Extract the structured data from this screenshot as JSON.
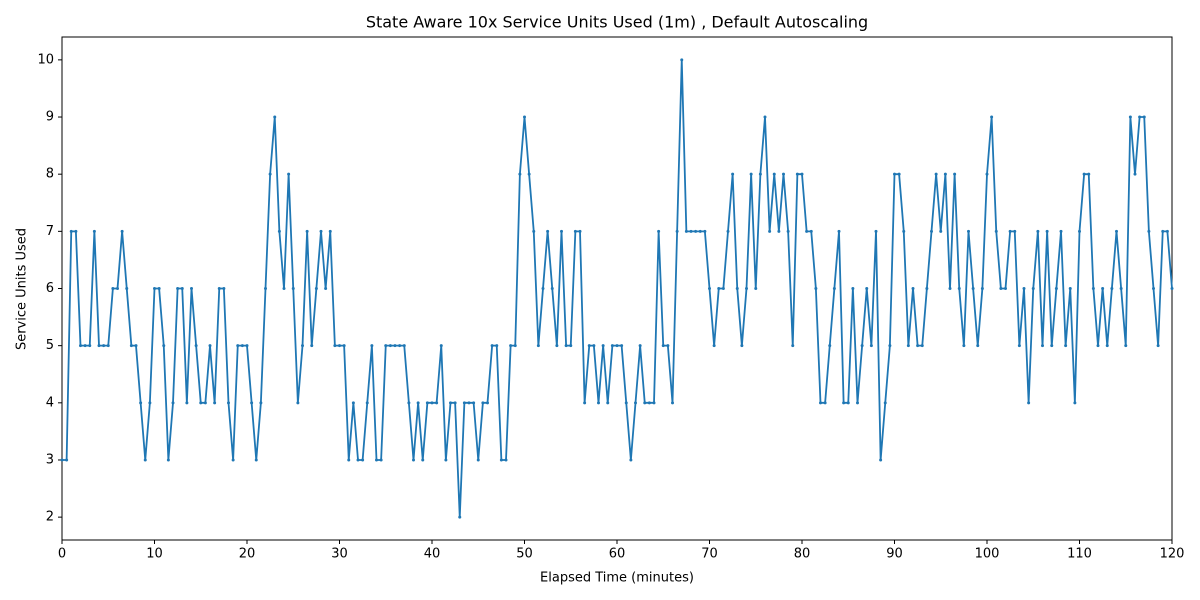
{
  "chart_data": {
    "type": "line",
    "title": "State Aware 10x Service Units Used (1m) , Default Autoscaling",
    "x_label": "Elapsed Time (minutes)",
    "y_label": "Service Units Used",
    "x": [
      0,
      0.5,
      1,
      1.5,
      2,
      2.5,
      3,
      3.5,
      4,
      4.5,
      5,
      5.5,
      6,
      6.5,
      7,
      7.5,
      8,
      8.5,
      9,
      9.5,
      10,
      10.5,
      11,
      11.5,
      12,
      12.5,
      13,
      13.5,
      14,
      14.5,
      15,
      15.5,
      16,
      16.5,
      17,
      17.5,
      18,
      18.5,
      19,
      19.5,
      20,
      20.5,
      21,
      21.5,
      22,
      22.5,
      23,
      23.5,
      24,
      24.5,
      25,
      25.5,
      26,
      26.5,
      27,
      27.5,
      28,
      28.5,
      29,
      29.5,
      30,
      30.5,
      31,
      31.5,
      32,
      32.5,
      33,
      33.5,
      34,
      34.5,
      35,
      35.5,
      36,
      36.5,
      37,
      37.5,
      38,
      38.5,
      39,
      39.5,
      40,
      40.5,
      41,
      41.5,
      42,
      42.5,
      43,
      43.5,
      44,
      44.5,
      45,
      45.5,
      46,
      46.5,
      47,
      47.5,
      48,
      48.5,
      49,
      49.5,
      50,
      50.5,
      51,
      51.5,
      52,
      52.5,
      53,
      53.5,
      54,
      54.5,
      55,
      55.5,
      56,
      56.5,
      57,
      57.5,
      58,
      58.5,
      59,
      59.5,
      60,
      60.5,
      61,
      61.5,
      62,
      62.5,
      63,
      63.5,
      64,
      64.5,
      65,
      65.5,
      66,
      66.5,
      67,
      67.5,
      68,
      68.5,
      69,
      69.5,
      70,
      70.5,
      71,
      71.5,
      72,
      72.5,
      73,
      73.5,
      74,
      74.5,
      75,
      75.5,
      76,
      76.5,
      77,
      77.5,
      78,
      78.5,
      79,
      79.5,
      80,
      80.5,
      81,
      81.5,
      82,
      82.5,
      83,
      83.5,
      84,
      84.5,
      85,
      85.5,
      86,
      86.5,
      87,
      87.5,
      88,
      88.5,
      89,
      89.5,
      90,
      90.5,
      91,
      91.5,
      92,
      92.5,
      93,
      93.5,
      94,
      94.5,
      95,
      95.5,
      96,
      96.5,
      97,
      97.5,
      98,
      98.5,
      99,
      99.5,
      100,
      100.5,
      101,
      101.5,
      102,
      102.5,
      103,
      103.5,
      104,
      104.5,
      105,
      105.5,
      106,
      106.5,
      107,
      107.5,
      108,
      108.5,
      109,
      109.5,
      110,
      110.5,
      111,
      111.5,
      112,
      112.5,
      113,
      113.5,
      114,
      114.5,
      115,
      115.5,
      116,
      116.5,
      117,
      117.5,
      118,
      118.5,
      119,
      119.5,
      120
    ],
    "series": [
      {
        "color": "#1f77b4",
        "values": [
          3,
          3,
          7,
          7,
          5,
          5,
          5,
          7,
          5,
          5,
          5,
          6,
          6,
          7,
          6,
          5,
          5,
          4,
          3,
          4,
          6,
          6,
          5,
          3,
          4,
          6,
          6,
          4,
          6,
          5,
          4,
          4,
          5,
          4,
          6,
          6,
          4,
          3,
          5,
          5,
          5,
          4,
          3,
          4,
          6,
          8,
          9,
          7,
          6,
          8,
          6,
          4,
          5,
          7,
          5,
          6,
          7,
          6,
          7,
          5,
          5,
          5,
          3,
          4,
          3,
          3,
          4,
          5,
          3,
          3,
          5,
          5,
          5,
          5,
          5,
          4,
          3,
          4,
          3,
          4,
          4,
          4,
          5,
          3,
          4,
          4,
          2,
          4,
          4,
          4,
          3,
          4,
          4,
          5,
          5,
          3,
          3,
          5,
          5,
          8,
          9,
          8,
          7,
          5,
          6,
          7,
          6,
          5,
          7,
          5,
          5,
          7,
          7,
          4,
          5,
          5,
          4,
          5,
          4,
          5,
          5,
          5,
          4,
          3,
          4,
          5,
          4,
          4,
          4,
          7,
          5,
          5,
          4,
          7,
          10,
          7,
          7,
          7,
          7,
          7,
          6,
          5,
          6,
          6,
          7,
          8,
          6,
          5,
          6,
          8,
          6,
          8,
          9,
          7,
          8,
          7,
          8,
          7,
          5,
          8,
          8,
          7,
          7,
          6,
          4,
          4,
          5,
          6,
          7,
          4,
          4,
          6,
          4,
          5,
          6,
          5,
          7,
          3,
          4,
          5,
          8,
          8,
          7,
          5,
          6,
          5,
          5,
          6,
          7,
          8,
          7,
          8,
          6,
          8,
          6,
          5,
          7,
          6,
          5,
          6,
          8,
          9,
          7,
          6,
          6,
          7,
          7,
          5,
          6,
          4,
          6,
          7,
          5,
          7,
          5,
          6,
          7,
          5,
          6,
          4,
          7,
          8,
          8,
          6,
          5,
          6,
          5,
          6,
          7,
          6,
          5,
          9,
          8,
          9,
          9,
          7,
          6,
          5,
          7,
          7,
          6
        ]
      }
    ],
    "xlim": [
      0,
      120
    ],
    "ylim": [
      1.6,
      10.4
    ],
    "xticks": [
      0,
      10,
      20,
      30,
      40,
      50,
      60,
      70,
      80,
      90,
      100,
      110,
      120
    ],
    "yticks": [
      2,
      3,
      4,
      5,
      6,
      7,
      8,
      9,
      10
    ]
  }
}
